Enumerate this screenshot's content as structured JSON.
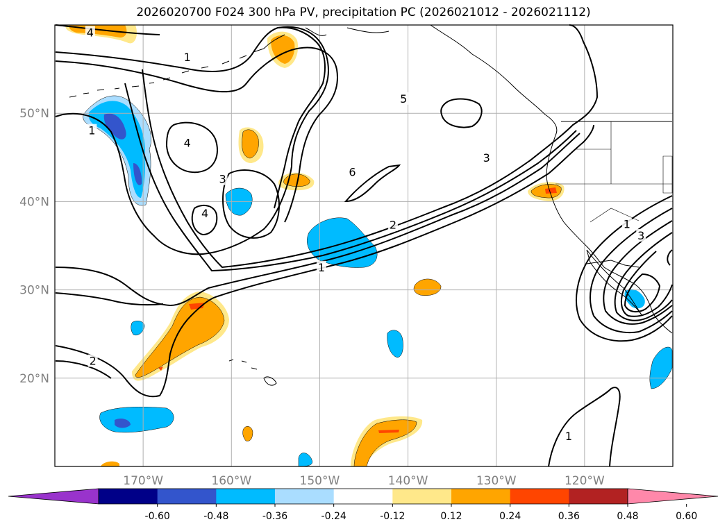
{
  "title": "2026020700 F024 300 hPa PV, precipitation PC (2026021012 - 2026021112)",
  "map": {
    "lon_range": [
      -180,
      -110
    ],
    "lat_range": [
      10,
      60
    ],
    "lat_gridlines": [
      {
        "value": 20,
        "label": "20°N"
      },
      {
        "value": 30,
        "label": "30°N"
      },
      {
        "value": 40,
        "label": "40°N"
      },
      {
        "value": 50,
        "label": "50°N"
      }
    ],
    "lon_gridlines": [
      {
        "value": -170,
        "label": "170°W"
      },
      {
        "value": -160,
        "label": "160°W"
      },
      {
        "value": -150,
        "label": "150°W"
      },
      {
        "value": -140,
        "label": "140°W"
      },
      {
        "value": -130,
        "label": "130°W"
      },
      {
        "value": -120,
        "label": "120°W"
      }
    ],
    "pv_contour_labels": [
      {
        "text": "4",
        "lon": -176,
        "lat": 59.1
      },
      {
        "text": "1",
        "lon": -165,
        "lat": 56.3
      },
      {
        "text": "1",
        "lon": -175.8,
        "lat": 48
      },
      {
        "text": "4",
        "lon": -165,
        "lat": 46.6
      },
      {
        "text": "3",
        "lon": -161,
        "lat": 42.5
      },
      {
        "text": "4",
        "lon": -163,
        "lat": 38.6
      },
      {
        "text": "5",
        "lon": -140.5,
        "lat": 51.6
      },
      {
        "text": "6",
        "lon": -146.3,
        "lat": 43.3
      },
      {
        "text": "3",
        "lon": -131.1,
        "lat": 44.9
      },
      {
        "text": "2",
        "lon": -141.7,
        "lat": 37.3
      },
      {
        "text": "1",
        "lon": -149.8,
        "lat": 32.5
      },
      {
        "text": "2",
        "lon": -175.7,
        "lat": 21.9
      },
      {
        "text": "1",
        "lon": -115.2,
        "lat": 37.4
      },
      {
        "text": "3",
        "lon": -113.6,
        "lat": 36.1
      },
      {
        "text": "1",
        "lon": -121.8,
        "lat": 13.4
      }
    ],
    "colors": {
      "contour": "#000000",
      "grid": "#b0b0b0",
      "coast": "#000000"
    }
  },
  "colorbar": {
    "ticks": [
      "-0.60",
      "-0.48",
      "-0.36",
      "-0.24",
      "-0.12",
      "0.12",
      "0.24",
      "0.36",
      "0.48",
      "0.60"
    ],
    "colors": [
      "#9933cc",
      "#000088",
      "#3355cc",
      "#00bbff",
      "#aaddff",
      "#ffffff",
      "#ffe88a",
      "#ffa500",
      "#ff4500",
      "#b22222",
      "#ff88aa"
    ]
  }
}
